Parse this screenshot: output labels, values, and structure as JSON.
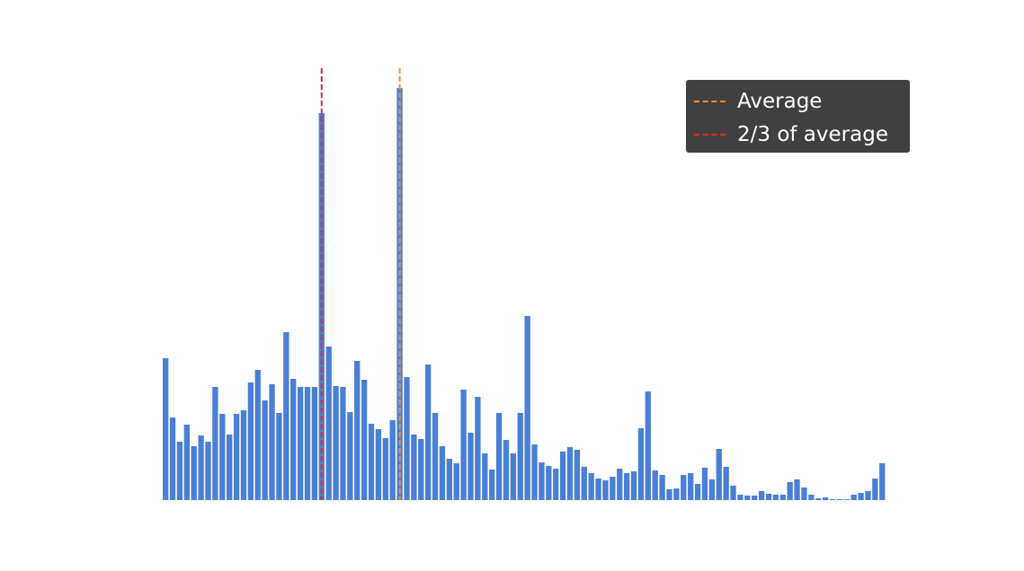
{
  "chart_data": {
    "type": "bar",
    "values": [
      158,
      92,
      65,
      84,
      60,
      72,
      65,
      126,
      96,
      73,
      96,
      100,
      131,
      145,
      111,
      129,
      97,
      187,
      135,
      126,
      126,
      126,
      431,
      171,
      127,
      126,
      98,
      155,
      134,
      85,
      79,
      69,
      89,
      459,
      137,
      73,
      68,
      151,
      97,
      60,
      46,
      41,
      123,
      75,
      115,
      52,
      34,
      97,
      67,
      52,
      97,
      205,
      62,
      42,
      38,
      35,
      54,
      59,
      56,
      37,
      30,
      24,
      22,
      26,
      35,
      30,
      32,
      80,
      121,
      33,
      28,
      12,
      13,
      28,
      30,
      18,
      36,
      23,
      57,
      37,
      16,
      6,
      5,
      5,
      10,
      7,
      6,
      6,
      20,
      23,
      14,
      6,
      2,
      3,
      1,
      1,
      1,
      6,
      8,
      10,
      24,
      41
    ],
    "bar_color": "#4a7fd6",
    "reference_lines": [
      {
        "label": "Average",
        "index": 33,
        "color": "#f58a2f"
      },
      {
        "label": "2/3 of average",
        "index": 22,
        "color": "#e32a22"
      }
    ],
    "legend_position": "top-right",
    "axes_visible": false,
    "grid": false
  }
}
